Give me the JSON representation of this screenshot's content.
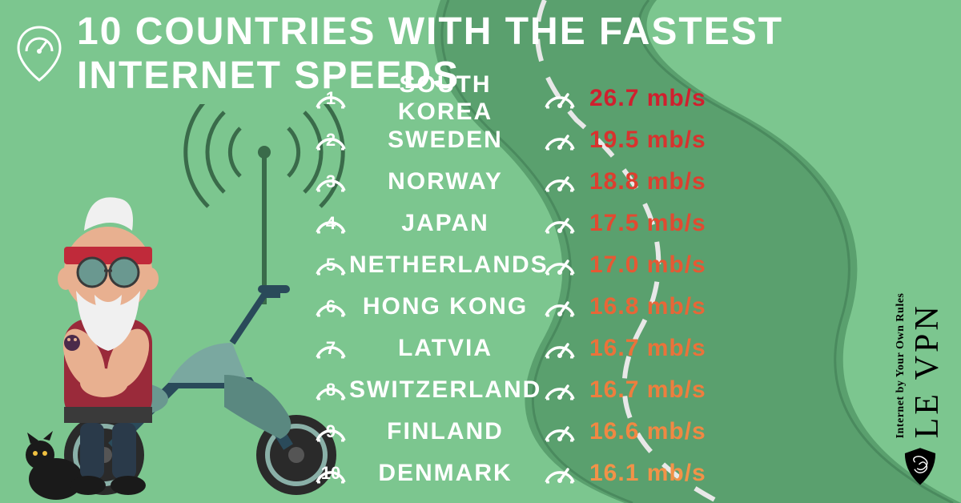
{
  "title": "10 COUNTRIES WITH THE FASTEST INTERNET SPEEDS",
  "brand": {
    "name": "LE VPN",
    "tagline": "Internet by Your Own Rules"
  },
  "colors": {
    "background": "#7cc68f",
    "road": "#5aa06e",
    "road_line": "#e8e8e8",
    "title": "#ffffff",
    "country": "#ffffff",
    "badge": "#ffffff",
    "shield": "#000000"
  },
  "speed_gradient": [
    "#d01f2e",
    "#d8322e",
    "#dd3e2f",
    "#e14a31",
    "#e55934",
    "#e86637",
    "#eb723a",
    "#ee7e3e",
    "#f08843",
    "#f29248"
  ],
  "rows": [
    {
      "rank": "1",
      "country": "SOUTH KOREA",
      "speed": "26.7 mb/s"
    },
    {
      "rank": "2",
      "country": "SWEDEN",
      "speed": "19.5 mb/s"
    },
    {
      "rank": "3",
      "country": "NORWAY",
      "speed": "18.8 mb/s"
    },
    {
      "rank": "4",
      "country": "JAPAN",
      "speed": "17.5 mb/s"
    },
    {
      "rank": "5",
      "country": "NETHERLANDS",
      "speed": "17.0 mb/s"
    },
    {
      "rank": "6",
      "country": "HONG KONG",
      "speed": "16.8 mb/s"
    },
    {
      "rank": "7",
      "country": "LATVIA",
      "speed": "16.7 mb/s"
    },
    {
      "rank": "8",
      "country": "SWITZERLAND",
      "speed": "16.7 mb/s"
    },
    {
      "rank": "9",
      "country": "FINLAND",
      "speed": "16.6 mb/s"
    },
    {
      "rank": "10",
      "country": "DENMARK",
      "speed": "16.1 mb/s"
    }
  ]
}
